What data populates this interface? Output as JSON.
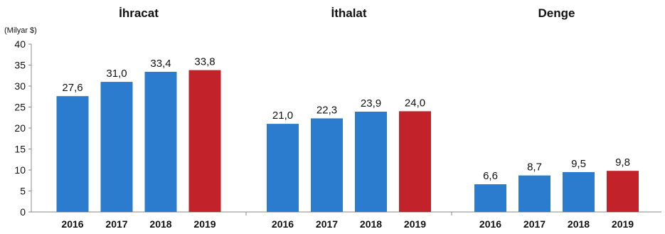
{
  "chart_data": {
    "type": "bar",
    "unit_label": "(Milyar $)",
    "ylim": [
      0,
      40
    ],
    "yticks": [
      0,
      5,
      10,
      15,
      20,
      25,
      30,
      35,
      40
    ],
    "grid": false,
    "legend": "none",
    "colors": {
      "regular": "#2b7bcf",
      "highlight": "#c2222a"
    },
    "highlight_category": "2019",
    "categories": [
      "2016",
      "2017",
      "2018",
      "2019"
    ],
    "groups": [
      {
        "title": "İhracat",
        "values": [
          27.6,
          31.0,
          33.4,
          33.8
        ],
        "labels": [
          "27,6",
          "31,0",
          "33,4",
          "33,8"
        ]
      },
      {
        "title": "İthalat",
        "values": [
          21.0,
          22.3,
          23.9,
          24.0
        ],
        "labels": [
          "21,0",
          "22,3",
          "23,9",
          "24,0"
        ]
      },
      {
        "title": "Denge",
        "values": [
          6.6,
          8.7,
          9.5,
          9.8
        ],
        "labels": [
          "6,6",
          "8,7",
          "9,5",
          "9,8"
        ]
      }
    ]
  }
}
